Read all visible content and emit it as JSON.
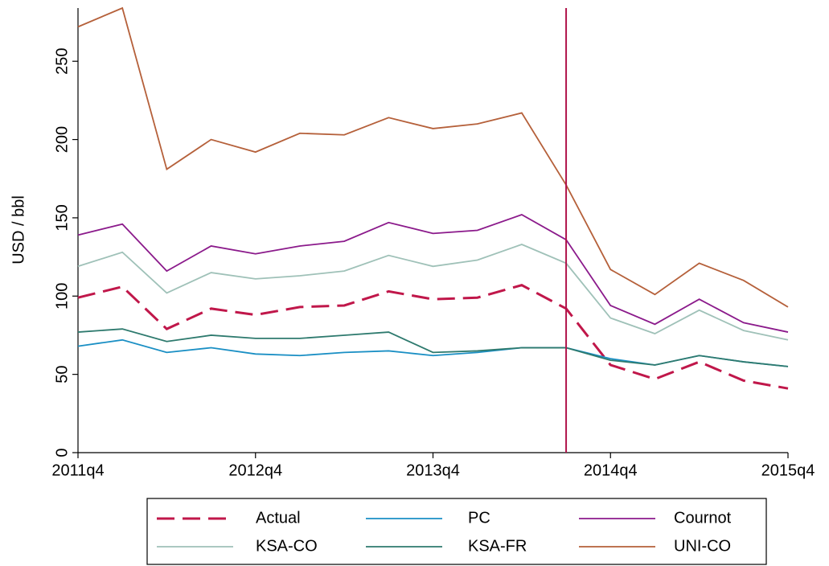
{
  "chart_data": {
    "type": "line",
    "y_label": "USD / bbl",
    "categories": [
      "2011q4",
      null,
      null,
      null,
      "2012q4",
      null,
      null,
      null,
      "2013q4",
      null,
      null,
      null,
      "2014q4",
      null,
      null,
      null,
      "2015q4"
    ],
    "ylim": [
      0,
      284
    ],
    "yticks": [
      0,
      50,
      100,
      150,
      200,
      250
    ],
    "legend": "bottom",
    "vline": {
      "x": 11,
      "color": "#b0134a"
    },
    "series": [
      {
        "name": "Actual",
        "color": "#c0174a",
        "dashed": true,
        "values": [
          99,
          106,
          79,
          92,
          88,
          93,
          94,
          103,
          98,
          99,
          107,
          92,
          56,
          47,
          58,
          46,
          41
        ]
      },
      {
        "name": "PC",
        "color": "#1a8fc4",
        "values": [
          68,
          72,
          64,
          67,
          63,
          62,
          64,
          65,
          62,
          64,
          67,
          67,
          60,
          56,
          62,
          58,
          55
        ]
      },
      {
        "name": "Cournot",
        "color": "#8b1a8b",
        "values": [
          139,
          146,
          116,
          132,
          127,
          132,
          135,
          147,
          140,
          142,
          152,
          136,
          94,
          82,
          98,
          83,
          77
        ]
      },
      {
        "name": "KSA-CO",
        "color": "#9fc1b8",
        "values": [
          119,
          128,
          102,
          115,
          111,
          113,
          116,
          126,
          119,
          123,
          133,
          121,
          86,
          76,
          91,
          78,
          72
        ]
      },
      {
        "name": "KSA-FR",
        "color": "#2e7a6e",
        "values": [
          77,
          79,
          71,
          75,
          73,
          73,
          75,
          77,
          64,
          65,
          67,
          67,
          59,
          56,
          62,
          58,
          55
        ]
      },
      {
        "name": "UNI-CO",
        "color": "#b5603a",
        "values": [
          272,
          284,
          181,
          200,
          192,
          204,
          203,
          214,
          207,
          210,
          217,
          171,
          117,
          101,
          121,
          110,
          93
        ]
      }
    ]
  }
}
